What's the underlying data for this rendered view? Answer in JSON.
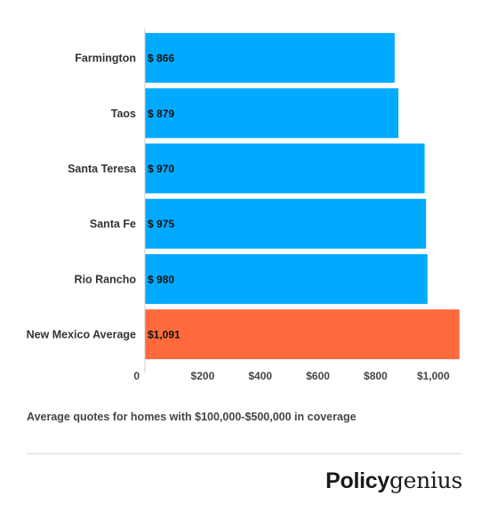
{
  "chart_data": {
    "type": "bar",
    "orientation": "horizontal",
    "categories": [
      "Farmington",
      "Taos",
      "Santa Teresa",
      "Santa Fe",
      "Rio Rancho",
      "New Mexico Average"
    ],
    "values": [
      866,
      879,
      970,
      975,
      980,
      1091
    ],
    "value_labels": [
      "$ 866",
      "$ 879",
      "$ 970",
      "$ 975",
      "$ 980",
      "$1,091"
    ],
    "colors": [
      "#00aaff",
      "#00aaff",
      "#00aaff",
      "#00aaff",
      "#00aaff",
      "#ff6a3d"
    ],
    "xlim": [
      0,
      1100
    ],
    "x_ticks": [
      0,
      200,
      400,
      600,
      800,
      1000
    ],
    "x_tick_labels": [
      "0",
      "$200",
      "$400",
      "$600",
      "$800",
      "$1,000"
    ],
    "grid": false,
    "title": "",
    "xlabel": "",
    "ylabel": ""
  },
  "caption": "Average quotes for homes with $100,000-$500,000 in coverage",
  "logo": {
    "bold": "Policy",
    "light": "genius"
  }
}
